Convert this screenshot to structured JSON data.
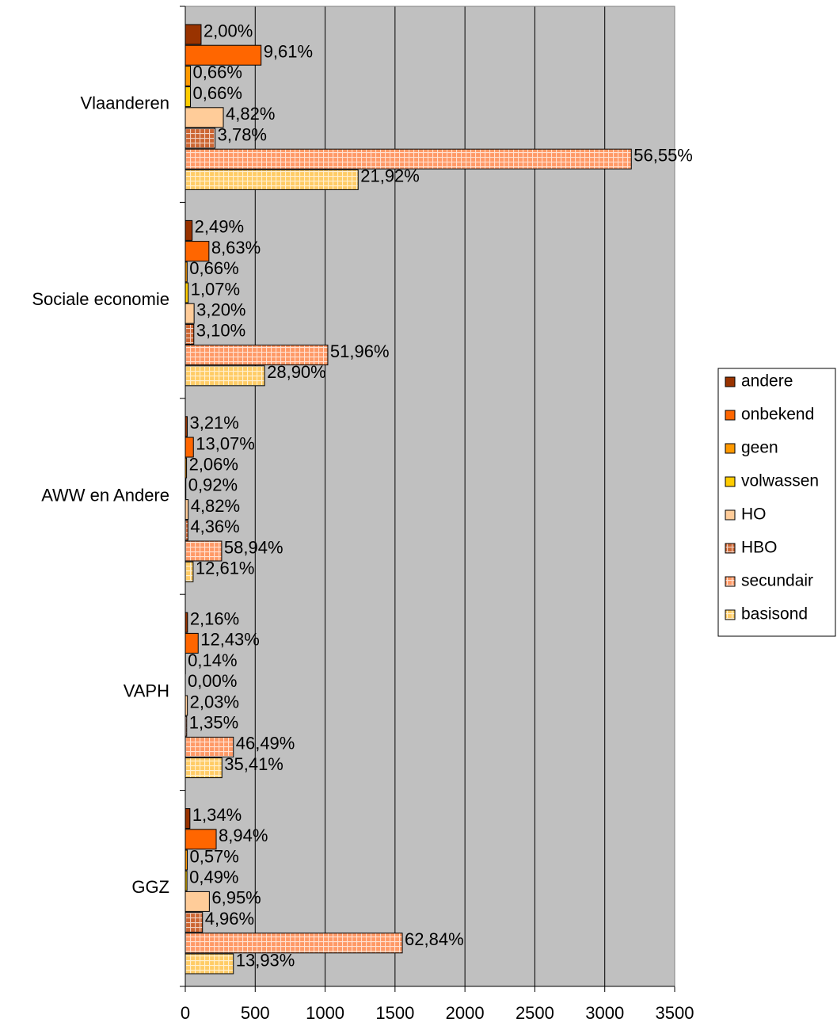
{
  "chart_data": {
    "type": "hbar",
    "categories": [
      "Vlaanderen",
      "Sociale economie",
      "AWW en Andere",
      "VAPH",
      "GGZ"
    ],
    "series": [
      {
        "name": "andere",
        "color": "#993300",
        "hatched": false,
        "values": [
          113,
          49,
          14,
          16,
          33
        ],
        "labels": [
          "2,00%",
          "2,49%",
          "3,21%",
          "2,16%",
          "1,34%"
        ]
      },
      {
        "name": "onbekend",
        "color": "#ff6600",
        "hatched": false,
        "values": [
          542,
          169,
          58,
          92,
          221
        ],
        "labels": [
          "9,61%",
          "8,63%",
          "13,07%",
          "12,43%",
          "8,94%"
        ]
      },
      {
        "name": "geen",
        "color": "#ff9900",
        "hatched": false,
        "values": [
          37,
          13,
          9,
          1,
          14
        ],
        "labels": [
          "0,66%",
          "0,66%",
          "2,06%",
          "0,14%",
          "0,57%"
        ]
      },
      {
        "name": "volwassen",
        "color": "#ffcc00",
        "hatched": false,
        "values": [
          37,
          21,
          4,
          0,
          12
        ],
        "labels": [
          "0,66%",
          "1,07%",
          "0,92%",
          "0,00%",
          "0,49%"
        ]
      },
      {
        "name": "HO",
        "color": "#ffcc99",
        "hatched": false,
        "values": [
          272,
          63,
          21,
          15,
          172
        ],
        "labels": [
          "4,82%",
          "3,20%",
          "4,82%",
          "2,03%",
          "6,95%"
        ]
      },
      {
        "name": "HBO",
        "color": "#cc6633",
        "hatched": true,
        "values": [
          213,
          61,
          19,
          10,
          123
        ],
        "labels": [
          "3,78%",
          "3,10%",
          "4,36%",
          "1,35%",
          "4,96%"
        ]
      },
      {
        "name": "secundair",
        "color": "#ff9966",
        "hatched": true,
        "values": [
          3190,
          1019,
          260,
          344,
          1552
        ],
        "labels": [
          "56,55%",
          "51,96%",
          "58,94%",
          "46,49%",
          "62,84%"
        ]
      },
      {
        "name": "basisond",
        "color": "#ffcc66",
        "hatched": true,
        "values": [
          1236,
          567,
          56,
          262,
          344
        ],
        "labels": [
          "21,92%",
          "28,90%",
          "12,61%",
          "35,41%",
          "13,93%"
        ]
      }
    ],
    "xlim": [
      0,
      3500
    ],
    "xticks": [
      0,
      500,
      1000,
      1500,
      2000,
      2500,
      3000,
      3500
    ],
    "grid": true,
    "legend": "right"
  }
}
